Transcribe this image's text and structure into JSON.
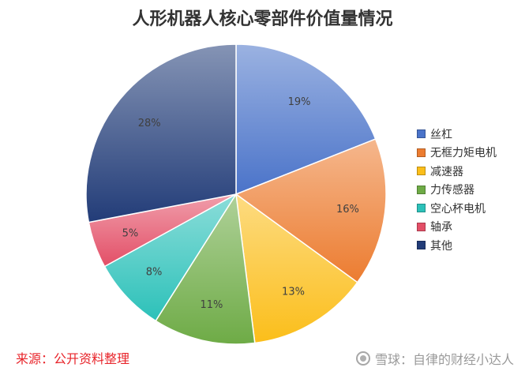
{
  "chart_data": {
    "type": "pie",
    "title": "人形机器人核心零部件价值量情况",
    "categories": [
      "丝杠",
      "无框力矩电机",
      "减速器",
      "力传感器",
      "空心杯电机",
      "轴承",
      "其他"
    ],
    "values": [
      19,
      16,
      13,
      11,
      8,
      5,
      28
    ],
    "labels": [
      "19%",
      "16%",
      "13%",
      "11%",
      "8%",
      "5%",
      "28%"
    ],
    "colors": [
      "#4a73c9",
      "#ec7c30",
      "#fbbe1a",
      "#6eab46",
      "#2cc1b9",
      "#e34f67",
      "#223c78"
    ],
    "legend_position": "right"
  },
  "footer": {
    "source": "来源：公开资料整理",
    "watermark": "雪球：自律的财经小达人"
  }
}
